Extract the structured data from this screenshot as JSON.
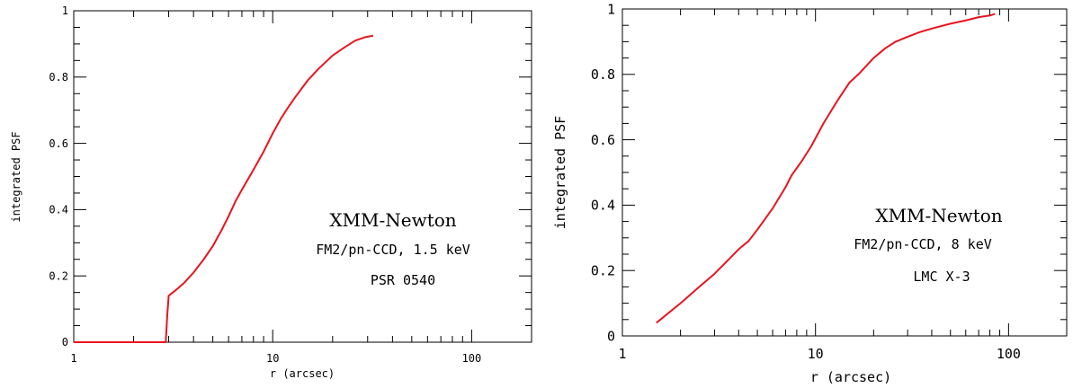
{
  "chart_data": [
    {
      "type": "line",
      "xscale": "log",
      "xlim": [
        1,
        200
      ],
      "ylim": [
        0,
        1
      ],
      "xlabel": "r (arcsec)",
      "ylabel": "integrated PSF",
      "x_tick_labels": [
        "1",
        "10",
        "100"
      ],
      "y_tick_labels": [
        "0",
        "0.2",
        "0.4",
        "0.6",
        "0.8",
        "1"
      ],
      "annotations": [
        "XMM-Newton",
        "FM2/pn-CCD, 1.5 keV",
        "PSR 0540"
      ],
      "grid": false,
      "series": [
        {
          "color": "#e8141e",
          "x": [
            1.0,
            2.9,
            2.95,
            3.0,
            3.3,
            3.6,
            4.0,
            4.5,
            5.0,
            5.5,
            6.0,
            6.5,
            7.0,
            8.0,
            9.0,
            10.0,
            11.0,
            12.0,
            13.0,
            15.0,
            17.0,
            20.0,
            23.0,
            26.0,
            29.0,
            32.0
          ],
          "y": [
            0.0,
            0.0,
            0.08,
            0.14,
            0.16,
            0.18,
            0.21,
            0.25,
            0.29,
            0.335,
            0.38,
            0.425,
            0.46,
            0.52,
            0.575,
            0.63,
            0.675,
            0.71,
            0.74,
            0.79,
            0.825,
            0.865,
            0.89,
            0.91,
            0.92,
            0.925
          ]
        }
      ]
    },
    {
      "type": "line",
      "xscale": "log",
      "xlim": [
        1,
        200
      ],
      "ylim": [
        0,
        1
      ],
      "xlabel": "r (arcsec)",
      "ylabel": "integrated PSF",
      "x_tick_labels": [
        "1",
        "10",
        "100"
      ],
      "y_tick_labels": [
        "0",
        "0.2",
        "0.4",
        "0.6",
        "0.8",
        "1"
      ],
      "annotations": [
        "XMM-Newton",
        "FM2/pn-CCD, 8 keV",
        "LMC X-3"
      ],
      "grid": false,
      "series": [
        {
          "color": "#e8141e",
          "x": [
            1.5,
            2.0,
            2.5,
            3.0,
            3.5,
            4.0,
            4.5,
            5.0,
            6.0,
            7.0,
            7.5,
            8.5,
            9.5,
            11.0,
            13.0,
            15.0,
            17.0,
            20.0,
            23.0,
            26.0,
            30.0,
            35.0,
            40.0,
            50.0,
            60.0,
            70.0,
            80.0,
            85.0
          ],
          "y": [
            0.04,
            0.1,
            0.15,
            0.19,
            0.23,
            0.265,
            0.29,
            0.325,
            0.39,
            0.455,
            0.49,
            0.535,
            0.58,
            0.65,
            0.72,
            0.775,
            0.805,
            0.85,
            0.88,
            0.9,
            0.915,
            0.93,
            0.94,
            0.955,
            0.965,
            0.975,
            0.98,
            0.985
          ]
        }
      ]
    }
  ]
}
